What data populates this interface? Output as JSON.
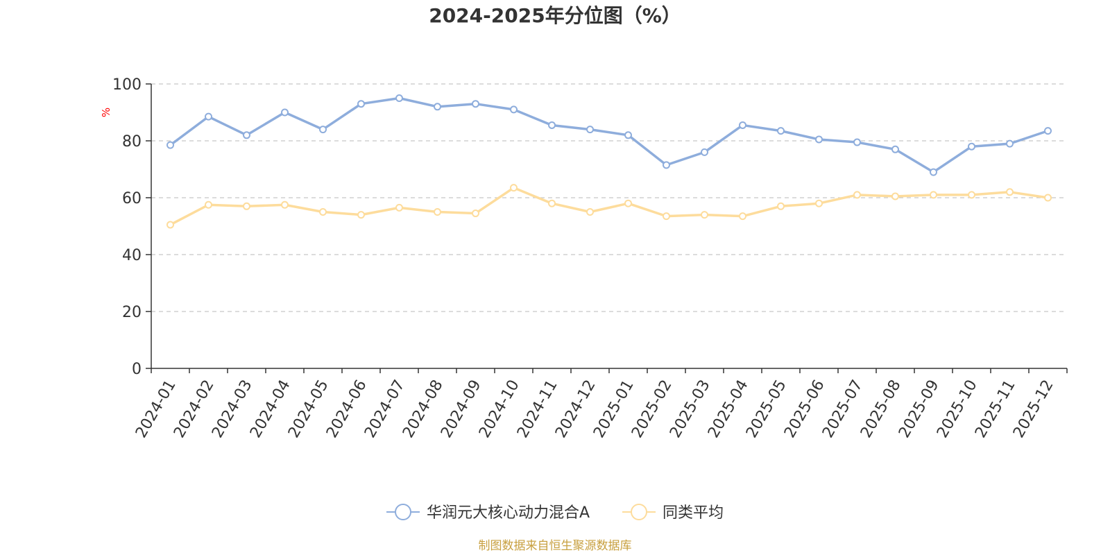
{
  "colors": {
    "series_a": "#8eaddc",
    "series_b": "#fddc9c",
    "axis": "#333333",
    "grid": "#c8c8c8",
    "unit": "#ff0000",
    "source": "#c8a040",
    "title": "#333333"
  },
  "chart_data": {
    "type": "line",
    "title": "2024-2025年分位图（%）",
    "ylabel": "%",
    "xlabel": "",
    "ylim": [
      0,
      100
    ],
    "yticks": [
      0,
      20,
      40,
      60,
      80,
      100
    ],
    "grid": true,
    "legend_position": "bottom-center",
    "categories": [
      "2024-01",
      "2024-02",
      "2024-03",
      "2024-04",
      "2024-05",
      "2024-06",
      "2024-07",
      "2024-08",
      "2024-09",
      "2024-10",
      "2024-11",
      "2024-12",
      "2025-01",
      "2025-02",
      "2025-03",
      "2025-04",
      "2025-05",
      "2025-06",
      "2025-07",
      "2025-08",
      "2025-09",
      "2025-10",
      "2025-11",
      "2025-12"
    ],
    "series": [
      {
        "name": "华润元大核心动力混合A",
        "values": [
          78.5,
          88.5,
          82,
          90,
          84,
          93,
          95,
          92,
          93,
          91,
          85.5,
          84,
          82,
          71.5,
          76,
          85.5,
          83.5,
          80.5,
          79.5,
          77,
          69,
          78,
          79,
          83.5
        ]
      },
      {
        "name": "同类平均",
        "values": [
          50.5,
          57.5,
          57,
          57.5,
          55,
          54,
          56.5,
          55,
          54.5,
          63.5,
          58,
          55,
          58,
          53.5,
          54,
          53.5,
          57,
          58,
          61,
          60.5,
          61,
          61,
          62,
          60
        ]
      }
    ],
    "source": "制图数据来自恒生聚源数据库"
  }
}
